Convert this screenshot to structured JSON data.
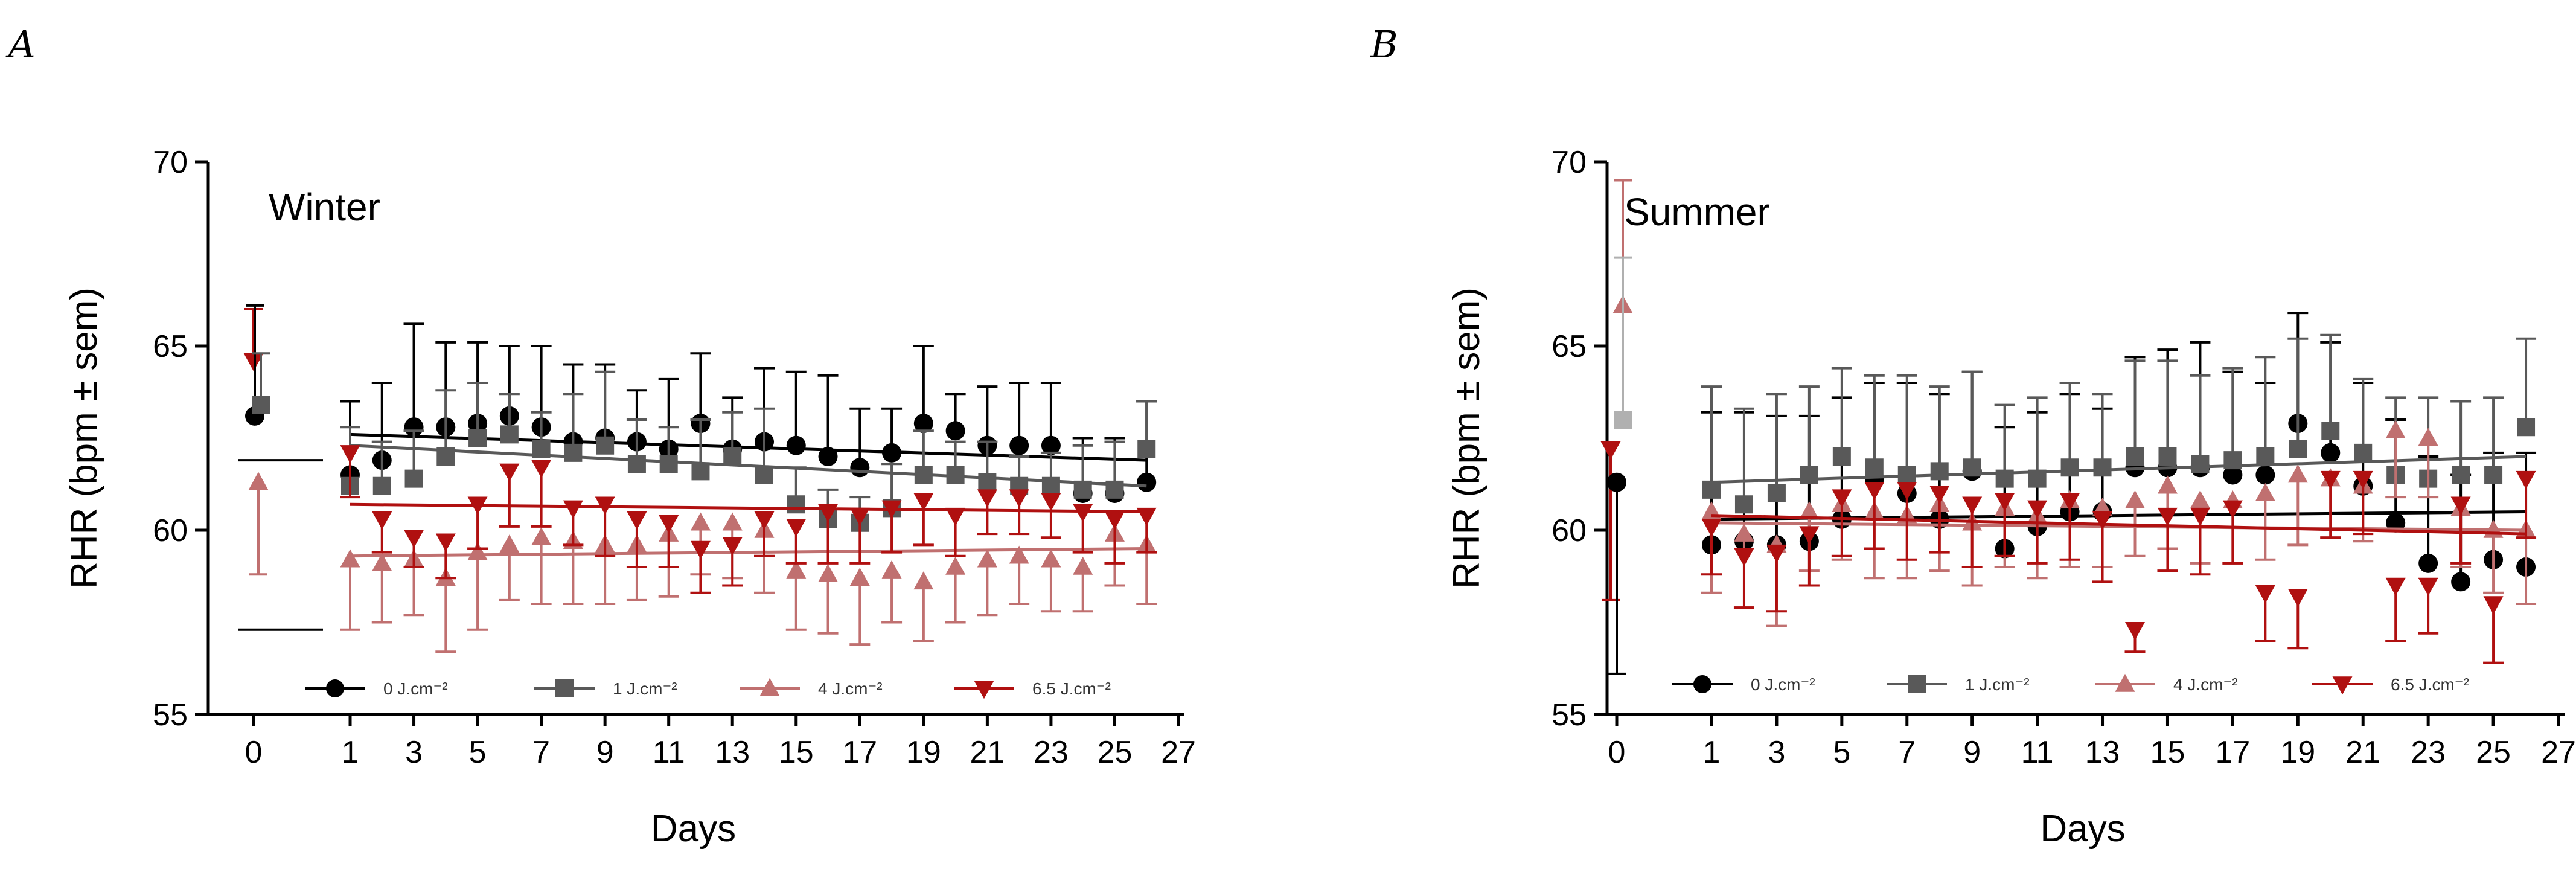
{
  "figure": {
    "panel_labels": [
      "A",
      "B"
    ]
  },
  "colors": {
    "0 J.cm-2": "#000000",
    "1 J.cm-2": "#595959",
    "4 J.cm-2": "#c07070",
    "6.5 J.cm-2": "#b01010",
    "1 J.cm-2 baseline": "#b0b0b0"
  },
  "chart_data": [
    {
      "type": "scatter",
      "panel": "A",
      "title": "Winter",
      "xlabel": "Days",
      "ylabel": "RHR (bpm ± sem)",
      "xlim": [
        -1,
        27
      ],
      "ylim": [
        55,
        70
      ],
      "xticks": [
        0,
        1,
        3,
        5,
        7,
        9,
        11,
        13,
        15,
        17,
        19,
        21,
        23,
        25,
        27
      ],
      "yticks": [
        55,
        60,
        65,
        70
      ],
      "legend": [
        "0 J.cm-2",
        "1 J.cm-2",
        "4 J.cm-2",
        "6.5 J.cm-2"
      ],
      "legend_labels": [
        "0 J.cm⁻²",
        "1 J.cm⁻²",
        "4 J.cm⁻²",
        "6.5 J.cm⁻²"
      ],
      "baseline": [
        {
          "name": "6.5 J.cm-2",
          "x": 0,
          "y": 64.6,
          "err": 1.4,
          "dir": "up"
        },
        {
          "name": "0 J.cm-2",
          "x": 0.05,
          "y": 63.1,
          "err": 3.0,
          "dir": "up"
        },
        {
          "name": "1 J.cm-2",
          "x": 0.3,
          "y": 63.4,
          "err": 1.4,
          "dir": "up"
        },
        {
          "name": "4 J.cm-2",
          "x": 0.2,
          "y": 61.3,
          "err": 2.5,
          "dir": "down"
        }
      ],
      "reference_lines": [
        61.9,
        57.3
      ],
      "series": [
        {
          "name": "0 J.cm-2",
          "marker": "circle",
          "err_dir": "up",
          "trend": [
            62.6,
            61.9
          ],
          "x": [
            1,
            2,
            3,
            4,
            5,
            6,
            7,
            8,
            9,
            10,
            11,
            12,
            13,
            14,
            15,
            16,
            17,
            18,
            19,
            20,
            21,
            22,
            23,
            24,
            25,
            26
          ],
          "y": [
            61.5,
            61.9,
            62.8,
            62.8,
            62.9,
            63.1,
            62.8,
            62.4,
            62.5,
            62.4,
            62.2,
            62.9,
            62.2,
            62.4,
            62.3,
            62.0,
            61.7,
            62.1,
            62.9,
            62.7,
            62.3,
            62.3,
            62.3,
            61.0,
            61.0,
            61.3
          ],
          "err": [
            2.0,
            2.1,
            2.8,
            2.3,
            2.2,
            1.9,
            2.2,
            2.1,
            2.0,
            1.4,
            1.9,
            1.9,
            1.4,
            2.0,
            2.0,
            2.2,
            1.6,
            1.2,
            2.1,
            1.0,
            1.6,
            1.7,
            1.7,
            1.5,
            1.5,
            2.2
          ]
        },
        {
          "name": "1 J.cm-2",
          "marker": "square",
          "err_dir": "up",
          "trend": [
            62.3,
            61.2
          ],
          "x": [
            1,
            2,
            3,
            4,
            5,
            6,
            7,
            8,
            9,
            10,
            11,
            12,
            13,
            14,
            15,
            16,
            17,
            18,
            19,
            20,
            21,
            22,
            23,
            24,
            25,
            26
          ],
          "y": [
            61.2,
            61.2,
            61.4,
            62.0,
            62.5,
            62.6,
            62.2,
            62.1,
            62.3,
            61.8,
            61.8,
            61.6,
            62.0,
            61.5,
            60.7,
            60.3,
            60.2,
            60.6,
            61.5,
            61.5,
            61.3,
            61.2,
            61.2,
            61.1,
            61.1,
            62.2
          ],
          "err": [
            1.6,
            1.2,
            1.3,
            1.8,
            1.5,
            1.1,
            1.0,
            1.6,
            2.0,
            1.2,
            1.0,
            1.4,
            1.2,
            1.8,
            1.0,
            0.8,
            0.7,
            1.2,
            1.2,
            0.9,
            1.1,
            0.8,
            0.9,
            1.2,
            1.3,
            1.3
          ]
        },
        {
          "name": "4 J.cm-2",
          "marker": "triangle-up",
          "err_dir": "down",
          "trend": [
            59.3,
            59.5
          ],
          "x": [
            1,
            2,
            3,
            4,
            5,
            6,
            7,
            8,
            9,
            10,
            11,
            12,
            13,
            14,
            15,
            16,
            17,
            18,
            19,
            20,
            21,
            22,
            23,
            24,
            25,
            26
          ],
          "y": [
            59.2,
            59.1,
            59.2,
            58.7,
            59.4,
            59.6,
            59.8,
            59.7,
            59.6,
            59.6,
            59.9,
            60.2,
            60.2,
            60.0,
            58.9,
            58.8,
            58.7,
            58.9,
            58.6,
            59.0,
            59.2,
            59.3,
            59.2,
            59.0,
            59.9,
            59.6
          ],
          "err": [
            1.9,
            1.6,
            1.5,
            2.0,
            2.1,
            1.5,
            1.8,
            1.7,
            1.6,
            1.5,
            1.7,
            1.4,
            1.5,
            1.7,
            1.6,
            1.6,
            1.8,
            1.4,
            1.6,
            1.5,
            1.5,
            1.3,
            1.4,
            1.2,
            1.4,
            1.6
          ]
        },
        {
          "name": "6.5 J.cm-2",
          "marker": "triangle-down",
          "err_dir": "down",
          "trend": [
            60.7,
            60.5
          ],
          "x": [
            1,
            2,
            3,
            4,
            5,
            6,
            7,
            8,
            9,
            10,
            11,
            12,
            13,
            14,
            15,
            16,
            17,
            18,
            19,
            20,
            21,
            22,
            23,
            24,
            25,
            26
          ],
          "y": [
            62.1,
            60.3,
            59.8,
            59.7,
            60.7,
            61.6,
            61.7,
            60.6,
            60.7,
            60.3,
            60.2,
            59.5,
            59.6,
            60.3,
            60.1,
            60.5,
            60.4,
            60.6,
            60.8,
            60.4,
            60.9,
            60.9,
            60.8,
            60.5,
            60.3,
            60.4
          ],
          "err": [
            1.2,
            0.9,
            0.8,
            1.0,
            1.2,
            1.5,
            1.6,
            1.0,
            1.4,
            1.3,
            1.2,
            1.2,
            1.1,
            1.0,
            1.0,
            1.4,
            1.3,
            1.2,
            1.2,
            1.1,
            1.0,
            1.0,
            1.0,
            1.1,
            1.2,
            1.0
          ]
        }
      ]
    },
    {
      "type": "scatter",
      "panel": "B",
      "title": "Summer",
      "xlabel": "Days",
      "ylabel": "RHR (bpm ± sem)",
      "xlim": [
        -1,
        27
      ],
      "ylim": [
        55,
        70
      ],
      "xticks": [
        0,
        1,
        3,
        5,
        7,
        9,
        11,
        13,
        15,
        17,
        19,
        21,
        23,
        25,
        27
      ],
      "yticks": [
        55,
        60,
        65,
        70
      ],
      "legend": [
        "0 J.cm-2",
        "1 J.cm-2",
        "4 J.cm-2",
        "6.5 J.cm-2"
      ],
      "legend_labels": [
        "0 J.cm⁻²",
        "1 J.cm⁻²",
        "4 J.cm⁻²",
        "6.5 J.cm⁻²"
      ],
      "baseline": [
        {
          "name": "6.5 J.cm-2",
          "x": -0.25,
          "y": 62.2,
          "err": 4.1,
          "dir": "down"
        },
        {
          "name": "0 J.cm-2",
          "x": 0,
          "y": 61.3,
          "err": 5.2,
          "dir": "down"
        },
        {
          "name": "4 J.cm-2",
          "x": 0.25,
          "y": 66.1,
          "err": 3.4,
          "dir": "up"
        },
        {
          "name": "1 J.cm-2 baseline",
          "x": 0.25,
          "y": 63.0,
          "err": 4.4,
          "dir": "up"
        }
      ],
      "reference_lines": [],
      "series": [
        {
          "name": "0 J.cm-2",
          "marker": "circle",
          "err_dir": "up",
          "trend": [
            60.3,
            60.5
          ],
          "x": [
            1,
            2,
            3,
            4,
            5,
            6,
            7,
            8,
            9,
            10,
            11,
            12,
            13,
            14,
            15,
            16,
            17,
            18,
            19,
            20,
            21,
            22,
            23,
            24,
            25,
            26
          ],
          "y": [
            59.6,
            59.7,
            59.6,
            59.7,
            60.3,
            61.4,
            61.0,
            60.3,
            61.6,
            59.5,
            60.1,
            60.5,
            60.5,
            61.7,
            61.7,
            61.7,
            61.5,
            61.5,
            62.9,
            62.1,
            61.2,
            60.2,
            59.1,
            58.6,
            59.2,
            59.0
          ],
          "err": [
            3.6,
            3.5,
            3.5,
            3.4,
            3.3,
            2.6,
            3.0,
            3.4,
            2.7,
            3.3,
            3.1,
            3.2,
            2.8,
            3.0,
            3.2,
            3.4,
            2.8,
            2.5,
            3.0,
            3.0,
            2.8,
            2.8,
            2.9,
            2.9,
            2.9,
            3.1
          ]
        },
        {
          "name": "1 J.cm-2",
          "marker": "square",
          "err_dir": "up",
          "trend": [
            61.3,
            62.0
          ],
          "x": [
            1,
            2,
            3,
            4,
            5,
            6,
            7,
            8,
            9,
            10,
            11,
            12,
            13,
            14,
            15,
            16,
            17,
            18,
            19,
            20,
            21,
            22,
            23,
            24,
            25,
            26
          ],
          "y": [
            61.1,
            60.7,
            61.0,
            61.5,
            62.0,
            61.7,
            61.5,
            61.6,
            61.7,
            61.4,
            61.4,
            61.7,
            61.7,
            62.0,
            62.0,
            61.8,
            61.9,
            62.0,
            62.2,
            62.7,
            62.1,
            61.5,
            61.4,
            61.5,
            61.5,
            62.8
          ],
          "err": [
            2.8,
            2.6,
            2.7,
            2.4,
            2.4,
            2.5,
            2.7,
            2.3,
            2.6,
            2.0,
            2.2,
            2.3,
            2.0,
            2.6,
            2.6,
            2.4,
            2.5,
            2.7,
            3.0,
            2.6,
            2.0,
            2.1,
            2.2,
            2.0,
            2.1,
            2.4
          ]
        },
        {
          "name": "4 J.cm-2",
          "marker": "triangle-up",
          "err_dir": "down",
          "trend": [
            60.2,
            60.0
          ],
          "x": [
            1,
            2,
            3,
            4,
            5,
            6,
            7,
            8,
            9,
            10,
            11,
            12,
            13,
            14,
            15,
            16,
            17,
            18,
            19,
            20,
            21,
            22,
            23,
            24,
            25,
            26
          ],
          "y": [
            60.5,
            59.9,
            59.6,
            60.5,
            60.7,
            60.5,
            60.4,
            60.7,
            60.2,
            60.6,
            60.4,
            60.8,
            60.6,
            60.8,
            61.2,
            60.8,
            60.8,
            61.0,
            61.5,
            61.4,
            61.2,
            62.7,
            62.5,
            60.6,
            60.0,
            60.0
          ],
          "err": [
            2.2,
            2.0,
            2.2,
            1.6,
            1.5,
            1.8,
            1.7,
            1.8,
            1.7,
            1.6,
            1.7,
            1.8,
            1.6,
            1.5,
            1.7,
            1.7,
            1.7,
            1.8,
            1.9,
            1.6,
            1.5,
            1.8,
            1.6,
            1.6,
            1.7,
            2.0
          ]
        },
        {
          "name": "6.5 J.cm-2",
          "marker": "triangle-down",
          "err_dir": "down",
          "trend": [
            60.4,
            59.9
          ],
          "x": [
            1,
            2,
            3,
            4,
            5,
            6,
            7,
            8,
            9,
            10,
            11,
            12,
            13,
            14,
            15,
            16,
            17,
            18,
            19,
            20,
            21,
            22,
            23,
            24,
            25,
            26
          ],
          "y": [
            60.1,
            59.3,
            59.4,
            59.9,
            60.9,
            61.1,
            61.1,
            61.0,
            60.7,
            60.8,
            60.6,
            60.8,
            60.3,
            57.3,
            60.4,
            60.4,
            60.6,
            58.3,
            58.2,
            61.4,
            61.4,
            58.5,
            58.5,
            60.7,
            58.0,
            61.4
          ],
          "err": [
            1.3,
            1.4,
            1.6,
            1.4,
            1.6,
            1.6,
            1.9,
            1.6,
            1.7,
            1.5,
            1.5,
            1.6,
            1.7,
            0.6,
            1.5,
            1.6,
            1.5,
            1.3,
            1.4,
            1.6,
            1.5,
            1.5,
            1.3,
            1.6,
            1.6,
            1.6
          ]
        }
      ]
    }
  ]
}
